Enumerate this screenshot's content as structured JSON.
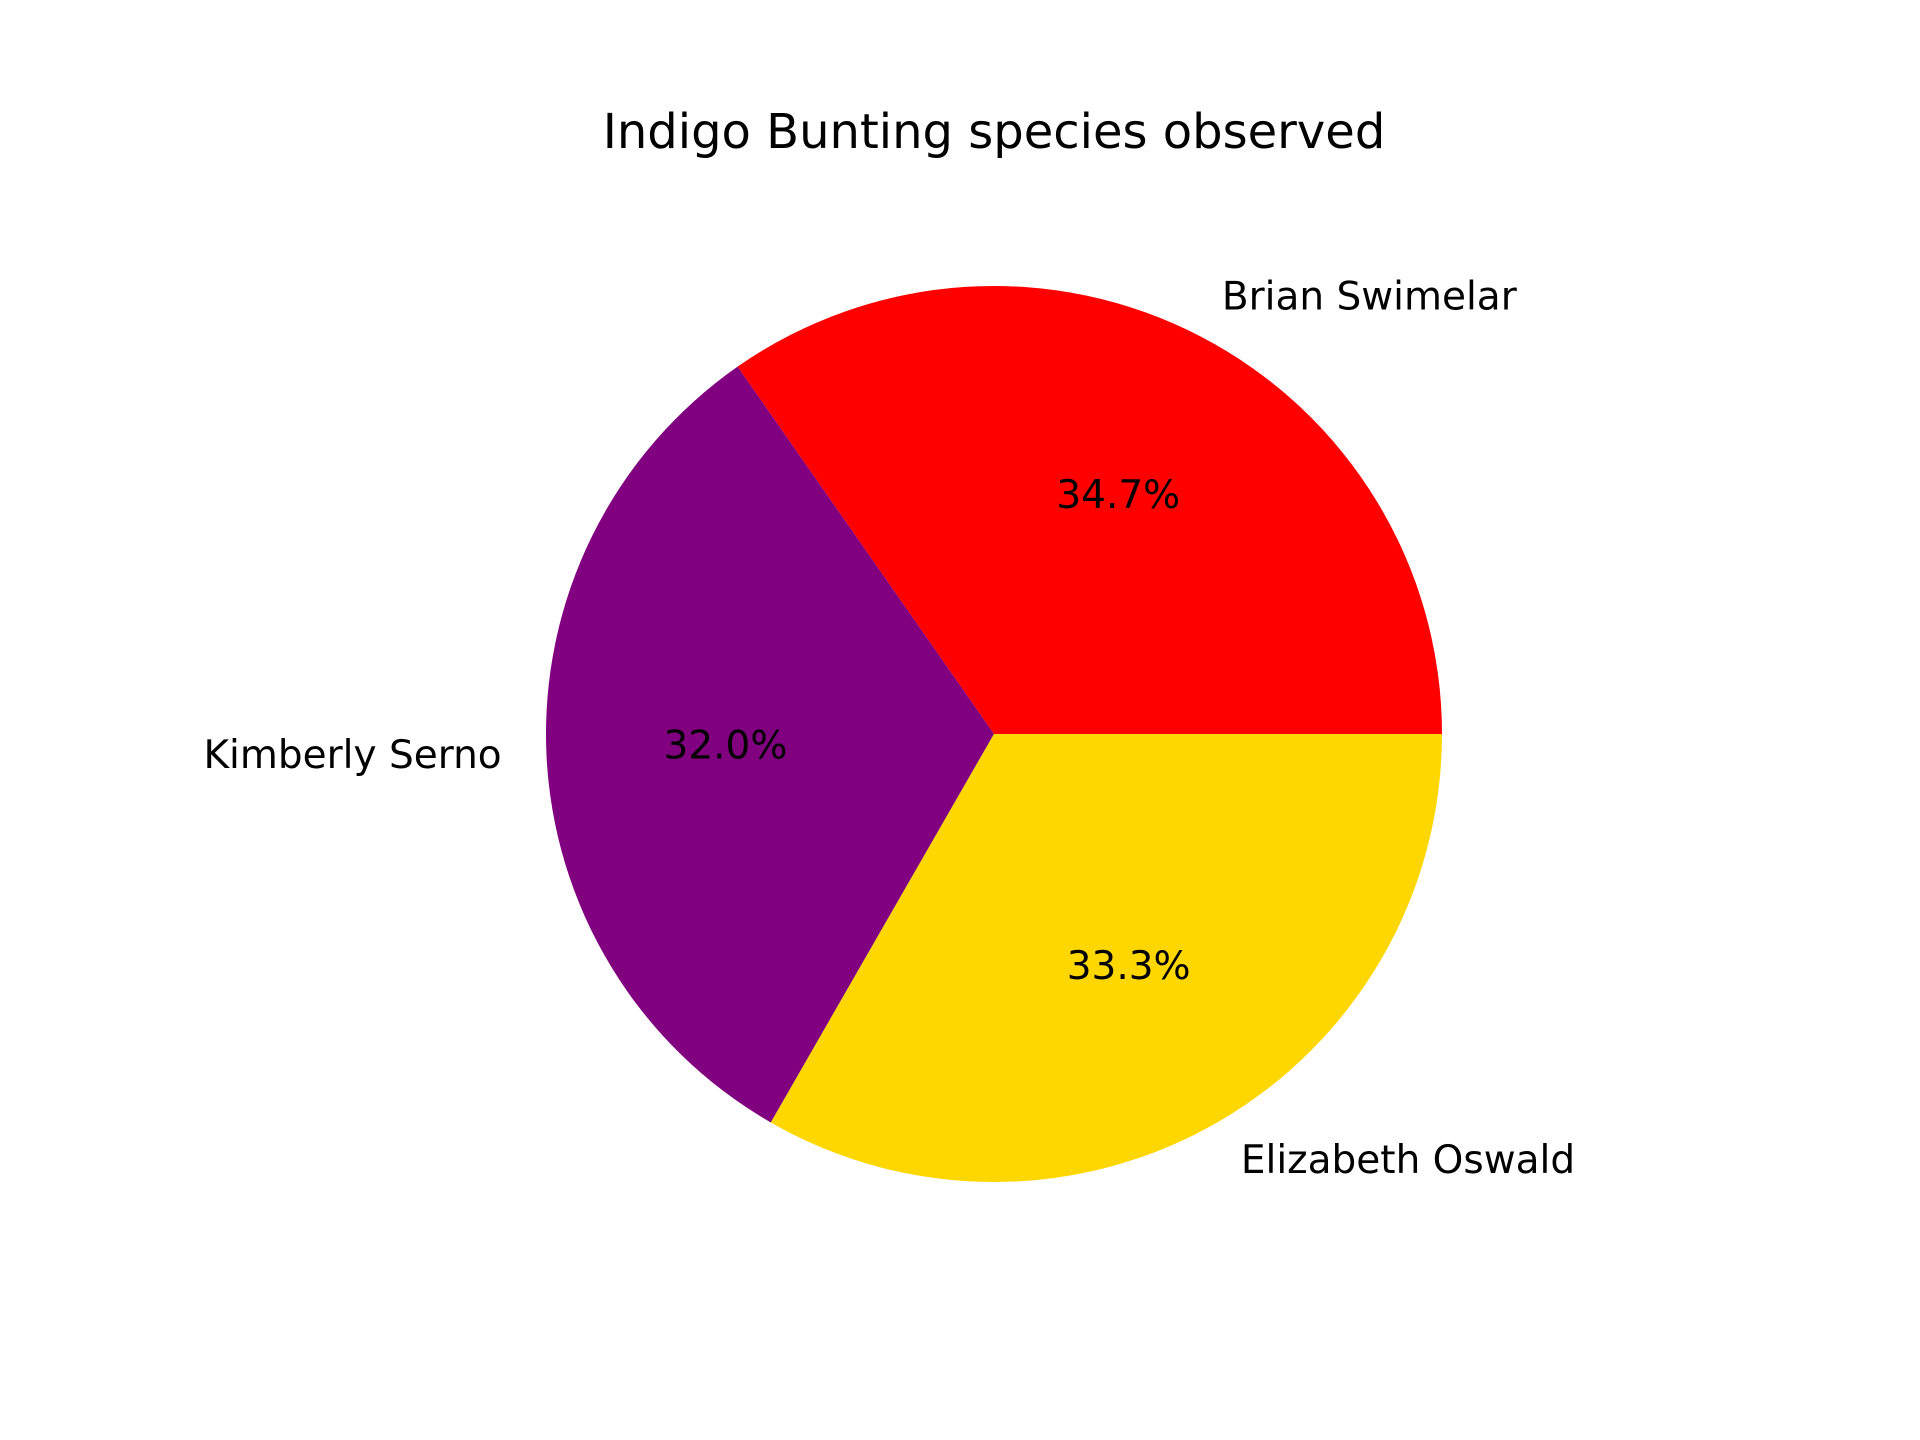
{
  "chart_data": {
    "type": "pie",
    "title": "Indigo Bunting species observed",
    "slices": [
      {
        "label": "Brian Swimelar",
        "value": 34.7,
        "pct_label": "34.7%",
        "color": "#ff0000"
      },
      {
        "label": "Kimberly Serno",
        "value": 32.0,
        "pct_label": "32.0%",
        "color": "#800080"
      },
      {
        "label": "Elizabeth Oswald",
        "value": 33.3,
        "pct_label": "33.3%",
        "color": "#ffd700"
      }
    ],
    "start_angle_deg": 0,
    "direction": "counterclockwise",
    "legend": "none"
  }
}
